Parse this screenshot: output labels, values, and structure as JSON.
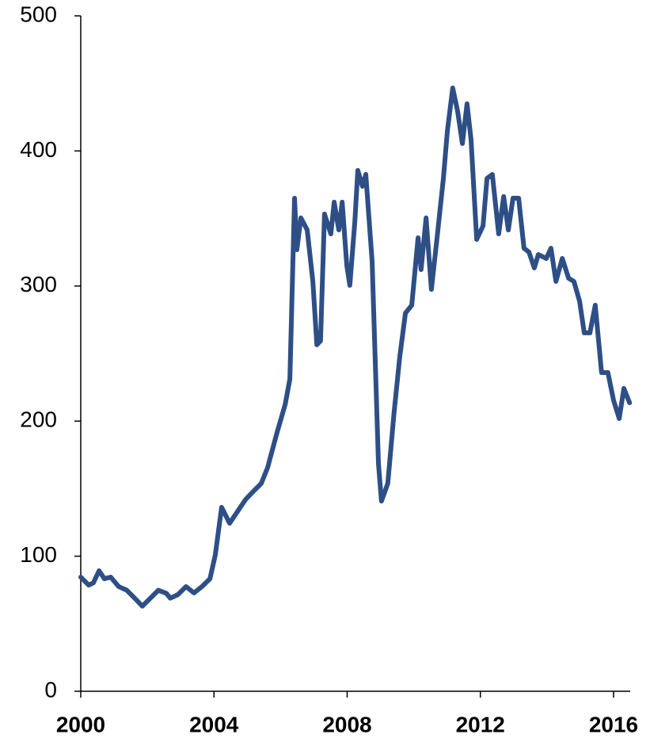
{
  "chart_data": {
    "type": "line",
    "x": [
      2000.0,
      2000.24,
      2000.38,
      2000.55,
      2000.71,
      2000.9,
      2001.14,
      2001.38,
      2001.62,
      2001.85,
      2002.09,
      2002.33,
      2002.57,
      2002.69,
      2002.92,
      2003.16,
      2003.4,
      2003.64,
      2003.88,
      2004.04,
      2004.23,
      2004.47,
      2004.71,
      2004.95,
      2005.18,
      2005.42,
      2005.61,
      2005.9,
      2006.14,
      2006.28,
      2006.42,
      2006.49,
      2006.61,
      2006.8,
      2006.97,
      2007.09,
      2007.2,
      2007.32,
      2007.51,
      2007.61,
      2007.75,
      2007.85,
      2007.99,
      2008.08,
      2008.23,
      2008.32,
      2008.46,
      2008.56,
      2008.75,
      2008.94,
      2009.03,
      2009.22,
      2009.41,
      2009.58,
      2009.75,
      2009.94,
      2010.13,
      2010.22,
      2010.37,
      2010.53,
      2010.7,
      2010.89,
      2011.01,
      2011.17,
      2011.32,
      2011.46,
      2011.6,
      2011.72,
      2011.89,
      2012.08,
      2012.2,
      2012.36,
      2012.55,
      2012.7,
      2012.84,
      2012.98,
      2013.15,
      2013.31,
      2013.46,
      2013.62,
      2013.74,
      2013.98,
      2014.12,
      2014.27,
      2014.46,
      2014.65,
      2014.81,
      2014.98,
      2015.12,
      2015.29,
      2015.45,
      2015.64,
      2015.83,
      2016.0,
      2016.17,
      2016.31,
      2016.48
    ],
    "series": [
      {
        "color": "#2e4f86",
        "values": [
          84.5,
          78.6,
          80.3,
          89.2,
          83.3,
          84.5,
          77.5,
          74.8,
          68.9,
          63.0,
          68.9,
          74.8,
          72.5,
          68.9,
          71.6,
          77.5,
          72.8,
          77.5,
          83.3,
          100.9,
          136.2,
          124.4,
          133.2,
          142.0,
          147.9,
          153.8,
          165.5,
          192.0,
          212.4,
          231.2,
          365.0,
          326.9,
          350.4,
          341.5,
          303.4,
          256.5,
          259.4,
          353.3,
          338.6,
          362.1,
          341.5,
          362.1,
          315.1,
          300.5,
          347.4,
          385.6,
          373.8,
          382.6,
          318.1,
          168.4,
          140.8,
          153.8,
          206.6,
          247.7,
          279.9,
          285.8,
          335.7,
          312.2,
          350.4,
          297.5,
          335.7,
          379.7,
          414.9,
          446.6,
          429.0,
          405.5,
          434.9,
          408.5,
          334.5,
          344.5,
          379.7,
          382.6,
          338.6,
          366.2,
          341.5,
          365.0,
          365.0,
          328.0,
          325.1,
          313.4,
          323.3,
          320.4,
          328.0,
          303.4,
          320.4,
          305.8,
          303.4,
          288.7,
          265.3,
          265.3,
          285.8,
          235.9,
          235.9,
          215.4,
          201.9,
          224.2,
          213.6
        ]
      }
    ],
    "xlim": [
      2000,
      2016.5
    ],
    "xticks": [
      2000,
      2004,
      2008,
      2012,
      2016
    ],
    "ylim": [
      0,
      500
    ],
    "yticks": [
      0,
      100,
      200,
      300,
      400,
      500
    ]
  }
}
